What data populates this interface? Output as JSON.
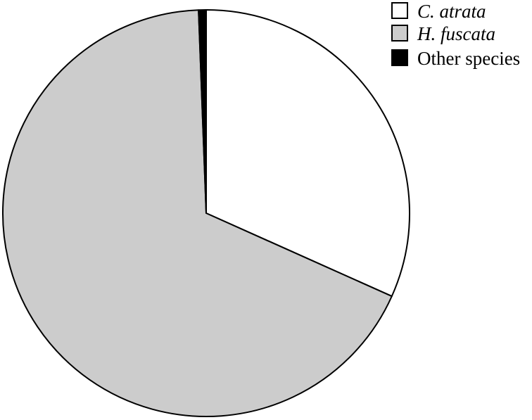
{
  "chart_data": {
    "type": "pie",
    "title": "",
    "slices": [
      {
        "label": "C. atrata",
        "value": 31.7,
        "color": "#ffffff",
        "italic": true
      },
      {
        "label": "H. fuscata",
        "value": 67.7,
        "color": "#cccccc",
        "italic": true
      },
      {
        "label": "Other species",
        "value": 0.6,
        "color": "#000000",
        "italic": false
      }
    ],
    "start_angle_deg": 0,
    "direction": "clockwise",
    "stroke_color": "#000000",
    "legend_position": "top-right"
  }
}
